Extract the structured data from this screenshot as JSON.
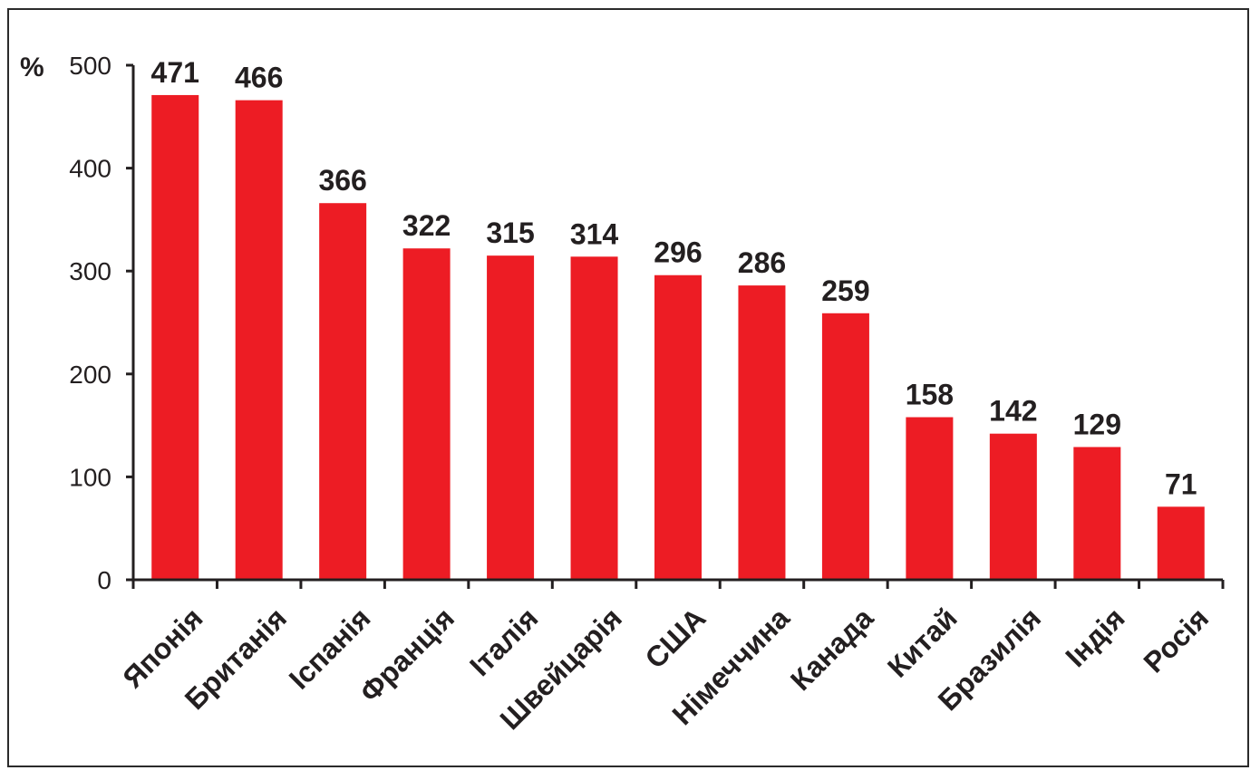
{
  "chart_data": {
    "type": "bar",
    "unit_label": "%",
    "categories": [
      "Японія",
      "Британія",
      "Іспанія",
      "Франція",
      "Італія",
      "Швейцарія",
      "США",
      "Німеччина",
      "Канада",
      "Китай",
      "Бразилія",
      "Індія",
      "Росія"
    ],
    "values": [
      471,
      466,
      366,
      322,
      315,
      314,
      296,
      286,
      259,
      158,
      142,
      129,
      71
    ],
    "value_labels": [
      "471",
      "466",
      "366",
      "322",
      "315",
      "314",
      "296",
      "286",
      "259",
      "158",
      "142",
      "129",
      "71"
    ],
    "ylim": [
      0,
      500
    ],
    "yticks": [
      0,
      100,
      200,
      300,
      400,
      500
    ],
    "ytick_labels": [
      "0",
      "100",
      "200",
      "300",
      "400",
      "500"
    ],
    "title": "",
    "xlabel": "",
    "ylabel": "",
    "grid": false,
    "legend": "none",
    "bar_color": "#ed1c24",
    "axis_color": "#231f20"
  }
}
